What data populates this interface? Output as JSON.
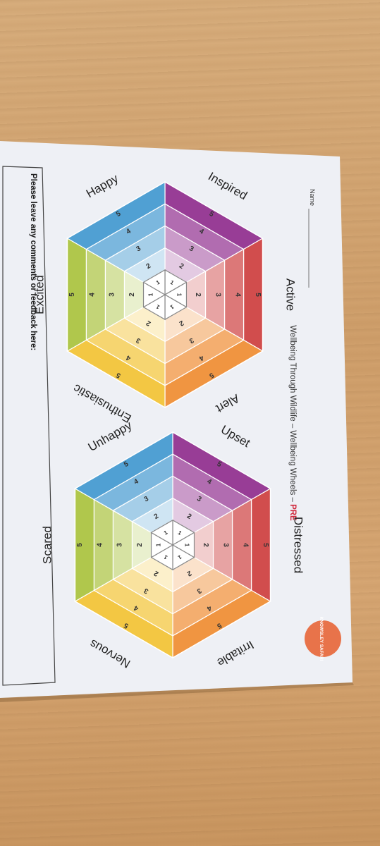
{
  "name_label": "Name",
  "title": {
    "main": "Wellbeing Through Wildlife – Wellbeing Wheels – ",
    "tag": "PRE"
  },
  "logo": {
    "text": "KNOWSLEY SAFARI"
  },
  "feedback": {
    "prompt": "Please leave any comments or feedback here:"
  },
  "wheels": [
    {
      "id": "positive",
      "emotions": [
        "Inspired",
        "Active",
        "Alert",
        "Enthusiastic",
        "Excited",
        "Happy"
      ],
      "scale": [
        "1",
        "2",
        "3",
        "4",
        "5"
      ]
    },
    {
      "id": "negative",
      "emotions": [
        "Upset",
        "Distressed",
        "Irritable",
        "Nervous",
        "Scared",
        "Unhappy"
      ],
      "scale": [
        "1",
        "2",
        "3",
        "4",
        "5"
      ]
    }
  ],
  "colors": {
    "paper": "#eef0f5",
    "wood": "#d2a36f",
    "logo": "#e8734a",
    "pre": "#d0263a",
    "sectors": [
      "#8e2a8c",
      "#cc3b3b",
      "#ef8a2e",
      "#f2c230",
      "#a8c13a",
      "#3f97cf"
    ]
  }
}
